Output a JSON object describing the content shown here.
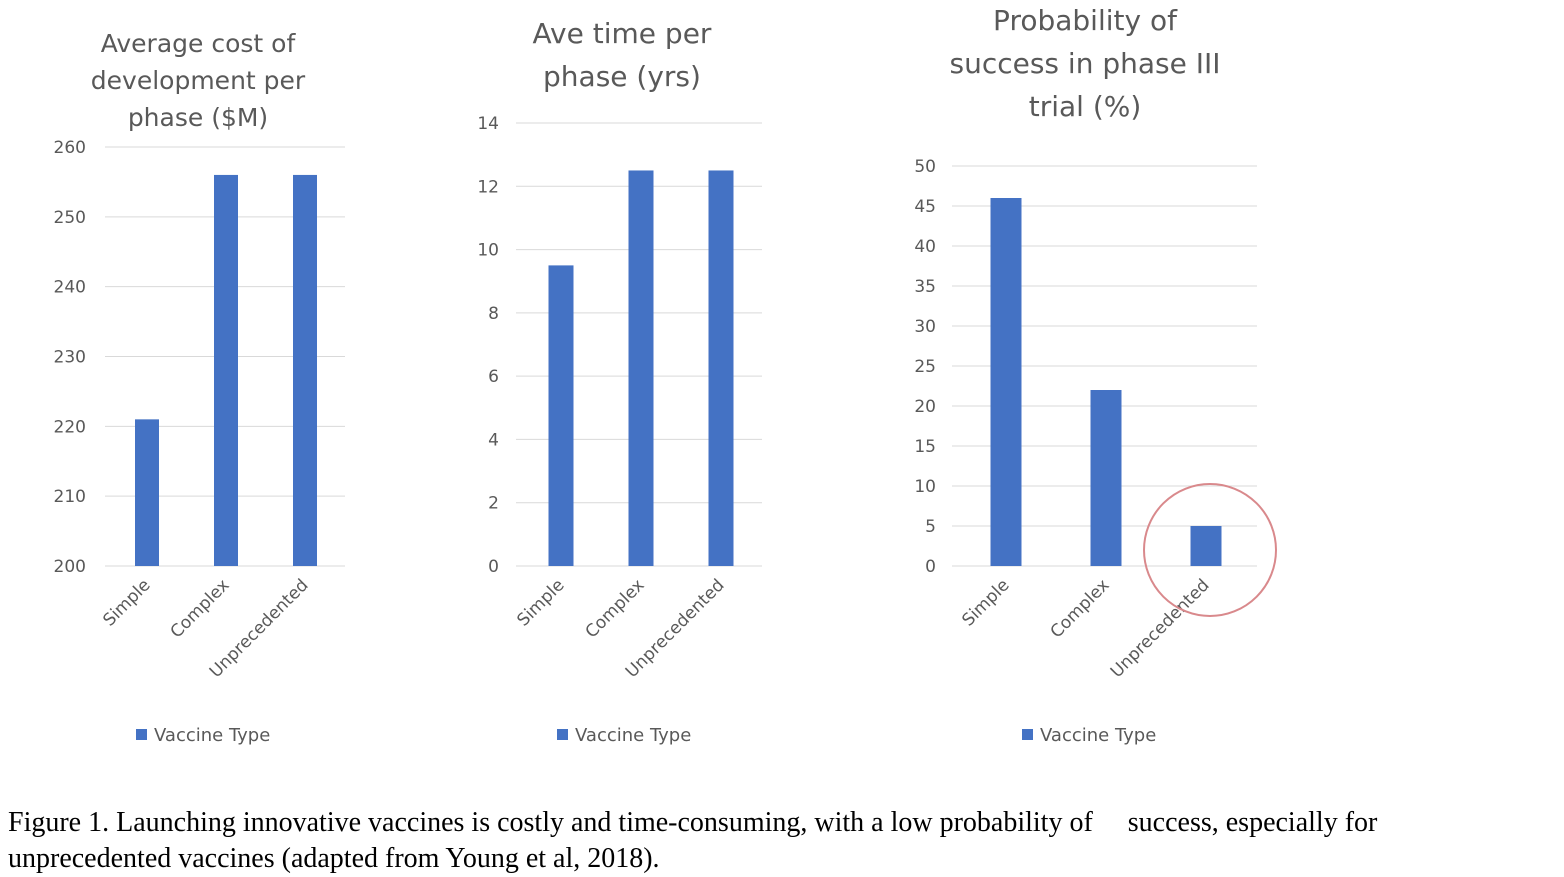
{
  "colors": {
    "bar": "#4472C4",
    "grid": "#D9D9D9",
    "text": "#595959",
    "highlight_circle": "#D9898C"
  },
  "chart_data": [
    {
      "type": "bar",
      "title_lines": [
        "Average cost of",
        "development per",
        "phase ($M)"
      ],
      "categories": [
        "Simple",
        "Complex",
        "Unprecedented"
      ],
      "series": [
        {
          "name": "Vaccine Type",
          "values": [
            221,
            256,
            256
          ]
        }
      ],
      "ylim": [
        200,
        260
      ],
      "yticks": [
        200,
        210,
        220,
        230,
        240,
        250,
        260
      ],
      "grid": true,
      "legend": "bottom"
    },
    {
      "type": "bar",
      "title_lines": [
        "Ave time per",
        "phase (yrs)"
      ],
      "categories": [
        "Simple",
        "Complex",
        "Unprecedented"
      ],
      "series": [
        {
          "name": "Vaccine Type",
          "values": [
            9.5,
            12.5,
            12.5
          ]
        }
      ],
      "ylim": [
        0,
        14
      ],
      "yticks": [
        0,
        2,
        4,
        6,
        8,
        10,
        12,
        14
      ],
      "grid": true,
      "legend": "bottom"
    },
    {
      "type": "bar",
      "title_lines": [
        "Probability of",
        "success in phase III",
        "trial (%)"
      ],
      "categories": [
        "Simple",
        "Complex",
        "Unprecedented"
      ],
      "series": [
        {
          "name": "Vaccine Type",
          "values": [
            46,
            22,
            5
          ]
        }
      ],
      "ylim": [
        0,
        50
      ],
      "yticks": [
        0,
        5,
        10,
        15,
        20,
        25,
        30,
        35,
        40,
        45,
        50
      ],
      "grid": true,
      "legend": "bottom",
      "highlight_category": "Unprecedented"
    }
  ],
  "caption": {
    "line1": "Figure 1. Launching innovative vaccines is costly and time-consuming, with a low probability of     success, especially for",
    "line2": "unprecedented vaccines (adapted from Young et al, 2018)."
  }
}
